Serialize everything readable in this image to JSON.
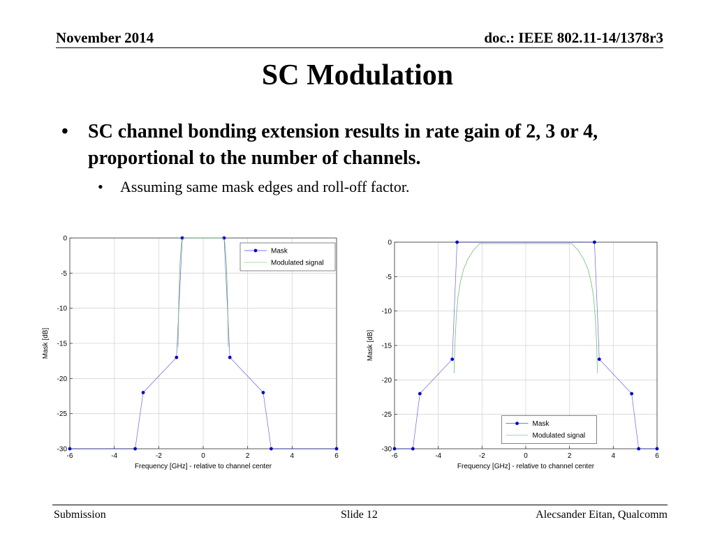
{
  "header": {
    "date": "November 2014",
    "doc": "doc.: IEEE 802.11-14/1378r3"
  },
  "title": "SC Modulation",
  "bullets": [
    {
      "text": "SC channel bonding extension results in rate gain of 2, 3 or 4, proportional to the number of channels.",
      "level": 1
    },
    {
      "text": "Assuming same mask edges and roll-off factor.",
      "level": 2
    }
  ],
  "chart_data": [
    {
      "type": "line",
      "xlabel": "Frequency [GHz] - relative to channel center",
      "ylabel": "Mask [dB]",
      "xlim": [
        -6,
        6
      ],
      "ylim": [
        -30,
        0
      ],
      "xticks": [
        -6,
        -4,
        -2,
        0,
        2,
        4,
        6
      ],
      "yticks": [
        0,
        -5,
        -10,
        -15,
        -20,
        -25,
        -30
      ],
      "grid": true,
      "legend": "top-right",
      "series": [
        {
          "name": "Mask",
          "color": "#0000cc",
          "x": [
            -6,
            -3.06,
            -2.7,
            -1.2,
            -0.94,
            0.94,
            1.2,
            2.7,
            3.06,
            6
          ],
          "y": [
            -30,
            -30,
            -22,
            -17,
            0,
            0,
            -17,
            -22,
            -30,
            -30
          ]
        },
        {
          "name": "Modulated signal",
          "color": "#5cb85c",
          "x": [
            -1.13,
            -1.1,
            -1.05,
            -1.0,
            -0.96,
            -0.9,
            0.9,
            0.96,
            1.0,
            1.05,
            1.1,
            1.13
          ],
          "y": [
            -15.5,
            -9,
            -4,
            -1.5,
            -0.4,
            0,
            0,
            -0.4,
            -1.5,
            -4,
            -9,
            -15.5
          ]
        }
      ]
    },
    {
      "type": "line",
      "xlabel": "Frequency [GHz] - relative to channel center",
      "ylabel": "Mask [dB]",
      "xlim": [
        -6,
        6
      ],
      "ylim": [
        -30,
        0
      ],
      "xticks": [
        -6,
        -4,
        -2,
        0,
        2,
        4,
        6
      ],
      "yticks": [
        0,
        -5,
        -10,
        -15,
        -20,
        -25,
        -30
      ],
      "grid": true,
      "legend": "bottom-center",
      "series": [
        {
          "name": "Mask",
          "color": "#0000cc",
          "x": [
            -6,
            -5.16,
            -4.84,
            -3.36,
            -3.14,
            3.14,
            3.36,
            4.84,
            5.16,
            6
          ],
          "y": [
            -30,
            -30,
            -22,
            -17,
            0,
            0,
            -17,
            -22,
            -30,
            -30
          ]
        },
        {
          "name": "Modulated signal",
          "color": "#5cb85c",
          "x": [
            -3.28,
            -3.24,
            -3.18,
            -3.1,
            -3.0,
            -2.85,
            -2.65,
            -2.4,
            -2.1,
            2.1,
            2.4,
            2.65,
            2.85,
            3.0,
            3.1,
            3.18,
            3.24,
            3.28
          ],
          "y": [
            -19,
            -15,
            -11,
            -8,
            -6,
            -4,
            -2.5,
            -1.2,
            -0.2,
            -0.2,
            -1.2,
            -2.5,
            -4,
            -6,
            -8,
            -11,
            -15,
            -19
          ]
        }
      ]
    }
  ],
  "footer": {
    "left": "Submission",
    "center": "Slide 12",
    "right": "Alecsander Eitan, Qualcomm"
  }
}
